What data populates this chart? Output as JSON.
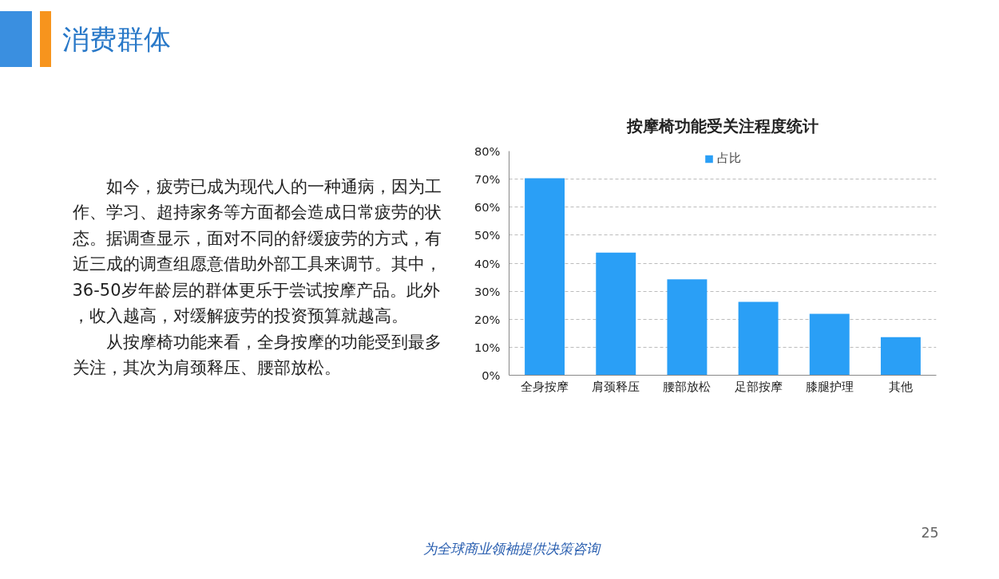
{
  "chart_data": {
    "type": "bar",
    "title": "按摩椅功能受关注程度统计",
    "categories": [
      "全身按摩",
      "肩颈释压",
      "腰部放松",
      "足部按摩",
      "膝腿护理",
      "其他"
    ],
    "series": [
      {
        "name": "占比",
        "color": "#2a9ff6",
        "values": [
          70.3,
          43.8,
          34.2,
          26.2,
          21.9,
          13.6
        ]
      }
    ],
    "ylim": [
      0,
      80
    ],
    "yticks": [
      {
        "value": 0,
        "label": "0%"
      },
      {
        "value": 10,
        "label": "10%"
      },
      {
        "value": 20,
        "label": "20%"
      },
      {
        "value": 30,
        "label": "30%"
      },
      {
        "value": 40,
        "label": "40%"
      },
      {
        "value": 50,
        "label": "50%"
      },
      {
        "value": 60,
        "label": "60%"
      },
      {
        "value": 70,
        "label": "70%"
      },
      {
        "value": 80,
        "label": "80%"
      }
    ],
    "grid": "y",
    "legend": "top",
    "annotations": [
      "消费群体",
      "如今，疲劳已成为现代人的一种通病，因为工作、学习、超持家务等方面都会造成日常疲劳的状态。据调查显示，面对不同的舒缓疲劳的方式，有近三成的调查组愿意借助外部工具来调节。其中，36-50岁年龄层的群体更乐于尝试按摩产品。此外，收入越高，对缓解疲劳的投资预算就越高。",
      "从按摩椅功能来看，全身按摩的功能受到最多关注，其次为肩颈释压、腰部放松。",
      "25",
      "为全球商业领袖提供决策咨询"
    ]
  }
}
